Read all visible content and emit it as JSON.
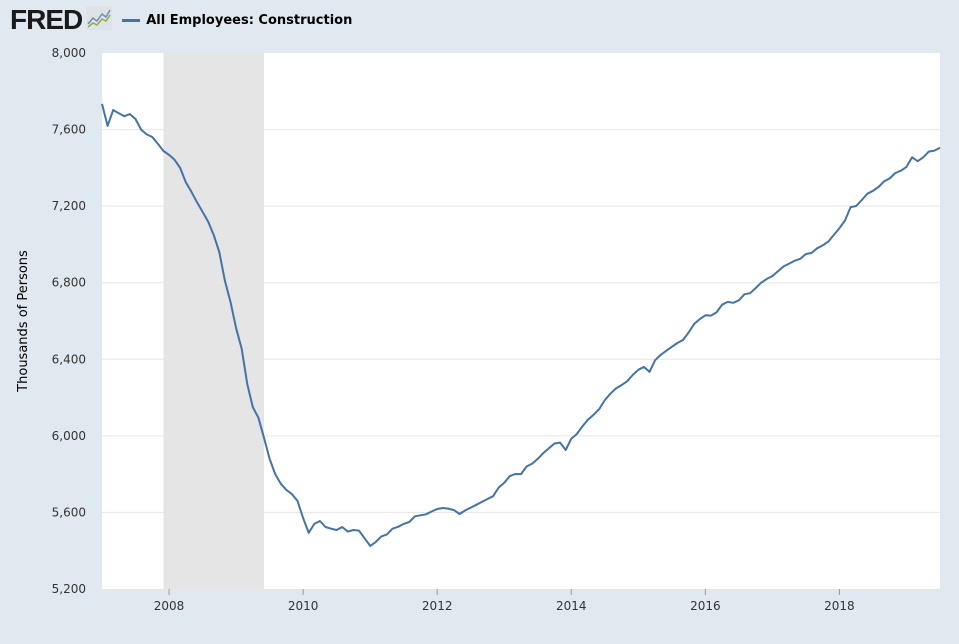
{
  "header": {
    "logo": "FRED",
    "logo_icon": "chart-line-icon"
  },
  "colors": {
    "background": "#e1e9f0",
    "plot": "#ffffff",
    "series": "#4572a7",
    "recession": "#e5e5e5",
    "grid": "#e6e6e6"
  },
  "chart_data": {
    "type": "line",
    "title": "",
    "xlabel": "",
    "ylabel": "Thousands of Persons",
    "ylim": [
      5200,
      8000
    ],
    "xlim": [
      "2007-01",
      "2019-07"
    ],
    "grid": true,
    "legend_placement": "top-left",
    "yticks": [
      5200,
      5600,
      6000,
      6400,
      6800,
      7200,
      7600,
      8000
    ],
    "ytick_labels": [
      "5,200",
      "5,600",
      "6,000",
      "6,400",
      "6,800",
      "7,200",
      "7,600",
      "8,000"
    ],
    "xticks": [
      "2008",
      "2010",
      "2012",
      "2014",
      "2016",
      "2018"
    ],
    "recessions": [
      {
        "start": "2007-12",
        "end": "2009-06"
      }
    ],
    "series": [
      {
        "name": "All Employees: Construction",
        "frequency": "monthly",
        "x": [
          "2007-01",
          "2007-02",
          "2007-03",
          "2007-04",
          "2007-05",
          "2007-06",
          "2007-07",
          "2007-08",
          "2007-09",
          "2007-10",
          "2007-11",
          "2007-12",
          "2008-01",
          "2008-02",
          "2008-03",
          "2008-04",
          "2008-05",
          "2008-06",
          "2008-07",
          "2008-08",
          "2008-09",
          "2008-10",
          "2008-11",
          "2008-12",
          "2009-01",
          "2009-02",
          "2009-03",
          "2009-04",
          "2009-05",
          "2009-06",
          "2009-07",
          "2009-08",
          "2009-09",
          "2009-10",
          "2009-11",
          "2009-12",
          "2010-01",
          "2010-02",
          "2010-03",
          "2010-04",
          "2010-05",
          "2010-06",
          "2010-07",
          "2010-08",
          "2010-09",
          "2010-10",
          "2010-11",
          "2010-12",
          "2011-01",
          "2011-02",
          "2011-03",
          "2011-04",
          "2011-05",
          "2011-06",
          "2011-07",
          "2011-08",
          "2011-09",
          "2011-10",
          "2011-11",
          "2011-12",
          "2012-01",
          "2012-02",
          "2012-03",
          "2012-04",
          "2012-05",
          "2012-06",
          "2012-07",
          "2012-08",
          "2012-09",
          "2012-10",
          "2012-11",
          "2012-12",
          "2013-01",
          "2013-02",
          "2013-03",
          "2013-04",
          "2013-05",
          "2013-06",
          "2013-07",
          "2013-08",
          "2013-09",
          "2013-10",
          "2013-11",
          "2013-12",
          "2014-01",
          "2014-02",
          "2014-03",
          "2014-04",
          "2014-05",
          "2014-06",
          "2014-07",
          "2014-08",
          "2014-09",
          "2014-10",
          "2014-11",
          "2014-12",
          "2015-01",
          "2015-02",
          "2015-03",
          "2015-04",
          "2015-05",
          "2015-06",
          "2015-07",
          "2015-08",
          "2015-09",
          "2015-10",
          "2015-11",
          "2015-12",
          "2016-01",
          "2016-02",
          "2016-03",
          "2016-04",
          "2016-05",
          "2016-06",
          "2016-07",
          "2016-08",
          "2016-09",
          "2016-10",
          "2016-11",
          "2016-12",
          "2017-01",
          "2017-02",
          "2017-03",
          "2017-04",
          "2017-05",
          "2017-06",
          "2017-07",
          "2017-08",
          "2017-09",
          "2017-10",
          "2017-11",
          "2017-12",
          "2018-01",
          "2018-02",
          "2018-03",
          "2018-04",
          "2018-05",
          "2018-06",
          "2018-07",
          "2018-08",
          "2018-09",
          "2018-10",
          "2018-11",
          "2018-12",
          "2019-01",
          "2019-02",
          "2019-03",
          "2019-04",
          "2019-05",
          "2019-06",
          "2019-07"
        ],
        "values": [
          7734,
          7619,
          7702,
          7685,
          7670,
          7681,
          7655,
          7600,
          7575,
          7561,
          7525,
          7488,
          7468,
          7442,
          7399,
          7325,
          7275,
          7220,
          7170,
          7120,
          7050,
          6960,
          6810,
          6700,
          6563,
          6455,
          6270,
          6150,
          6095,
          5990,
          5880,
          5800,
          5750,
          5717,
          5696,
          5660,
          5571,
          5493,
          5540,
          5555,
          5524,
          5515,
          5508,
          5524,
          5500,
          5508,
          5505,
          5465,
          5425,
          5445,
          5475,
          5485,
          5515,
          5525,
          5540,
          5550,
          5580,
          5585,
          5590,
          5605,
          5618,
          5623,
          5620,
          5612,
          5592,
          5610,
          5625,
          5640,
          5655,
          5670,
          5685,
          5730,
          5755,
          5790,
          5801,
          5800,
          5840,
          5855,
          5880,
          5910,
          5935,
          5960,
          5965,
          5926,
          5985,
          6010,
          6050,
          6085,
          6110,
          6140,
          6187,
          6220,
          6248,
          6265,
          6285,
          6318,
          6345,
          6360,
          6334,
          6395,
          6423,
          6445,
          6465,
          6485,
          6501,
          6540,
          6585,
          6610,
          6630,
          6628,
          6645,
          6685,
          6700,
          6695,
          6708,
          6740,
          6745,
          6772,
          6800,
          6820,
          6835,
          6860,
          6885,
          6900,
          6915,
          6925,
          6950,
          6955,
          6980,
          6995,
          7015,
          7050,
          7085,
          7125,
          7195,
          7201,
          7232,
          7265,
          7280,
          7300,
          7330,
          7345,
          7373,
          7385,
          7405,
          7455,
          7435,
          7455,
          7485,
          7490,
          7505
        ]
      }
    ]
  }
}
